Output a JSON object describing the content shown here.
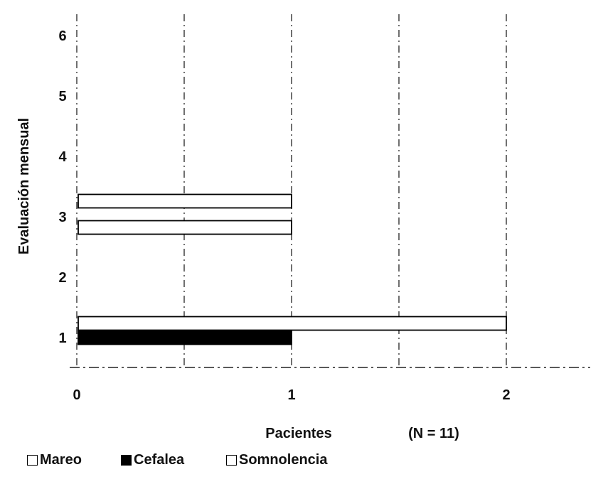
{
  "chart_data": {
    "type": "bar",
    "orientation": "horizontal",
    "ylabel": "Evaluación mensual",
    "xlabel": "Pacientes",
    "note": "(N = 11)",
    "categories": [
      1,
      2,
      3,
      4,
      5,
      6
    ],
    "xticks": [
      "0",
      "1",
      "2"
    ],
    "yticks": [
      "1",
      "2",
      "3",
      "4",
      "5",
      "6"
    ],
    "xlim": [
      0,
      2.4
    ],
    "ylim": [
      0.5,
      6.5
    ],
    "series": [
      {
        "name": "Mareo",
        "color": "#ffffff",
        "values": [
          2,
          0,
          1,
          0,
          0,
          0
        ]
      },
      {
        "name": "Cefalea",
        "color": "#000000",
        "values": [
          1,
          0,
          0,
          0,
          0,
          0
        ]
      },
      {
        "name": "Somnolencia",
        "color": "#ffffff",
        "values": [
          0,
          0,
          1,
          0,
          0,
          0
        ]
      }
    ],
    "legend_position": "bottom-left",
    "grid": "dashed vertical"
  },
  "legend_items": [
    {
      "label": "Mareo",
      "icon": "hollow-square",
      "color": "#ffffff"
    },
    {
      "label": "Cefalea",
      "icon": "filled-square",
      "color": "#000000"
    },
    {
      "label": "Somnolencia",
      "icon": "hollow-square",
      "color": "#ffffff"
    }
  ]
}
